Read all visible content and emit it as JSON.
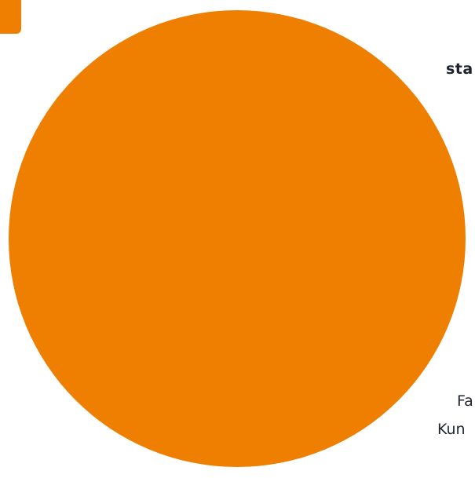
{
  "colors": {
    "accent_orange": "#ef7f00",
    "text_dark": "#1f2430",
    "background": "#ffffff"
  },
  "partial_text": {
    "heading_fragment": "sta",
    "line_1_fragment": "Fa",
    "line_2_fragment": "Kun"
  }
}
